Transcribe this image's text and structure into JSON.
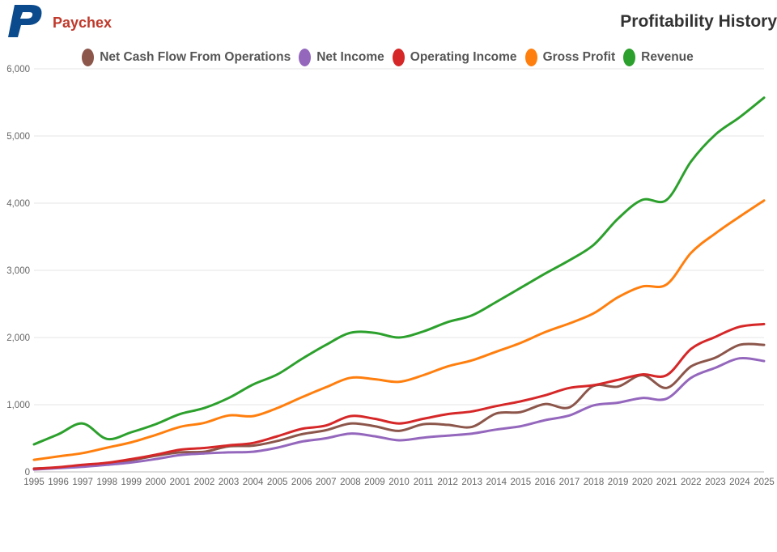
{
  "header": {
    "brand": "Paychex",
    "title": "Profitability History"
  },
  "logo": {
    "letter": "P",
    "color": "#0b4a8c"
  },
  "chart_data": {
    "type": "line",
    "title": "Profitability History",
    "xlabel": "",
    "ylabel": "",
    "ylim": [
      0,
      6000
    ],
    "yticks": [
      0,
      1000,
      2000,
      3000,
      4000,
      5000,
      6000
    ],
    "ytick_labels": [
      "0",
      "1,000",
      "2,000",
      "3,000",
      "4,000",
      "5,000",
      "6,000"
    ],
    "categories": [
      "1995",
      "1996",
      "1997",
      "1998",
      "1999",
      "2000",
      "2001",
      "2002",
      "2003",
      "2004",
      "2005",
      "2006",
      "2007",
      "2008",
      "2009",
      "2010",
      "2011",
      "2012",
      "2013",
      "2014",
      "2015",
      "2016",
      "2017",
      "2018",
      "2019",
      "2020",
      "2021",
      "2022",
      "2023",
      "2024",
      "2025"
    ],
    "grid": true,
    "legend_position": "top",
    "series": [
      {
        "name": "Net Cash Flow From Operations",
        "color": "#8c564b",
        "values": [
          50,
          65,
          100,
          130,
          175,
          240,
          290,
          300,
          380,
          390,
          460,
          560,
          620,
          720,
          680,
          610,
          710,
          700,
          670,
          870,
          890,
          1010,
          960,
          1280,
          1270,
          1440,
          1250,
          1570,
          1700,
          1890,
          1890
        ]
      },
      {
        "name": "Net Income",
        "color": "#9467bd",
        "values": [
          35,
          55,
          75,
          105,
          140,
          190,
          250,
          275,
          290,
          300,
          360,
          450,
          500,
          570,
          530,
          470,
          510,
          540,
          570,
          630,
          680,
          770,
          840,
          990,
          1030,
          1100,
          1090,
          1400,
          1550,
          1690,
          1650
        ]
      },
      {
        "name": "Operating Income",
        "color": "#d62728",
        "values": [
          45,
          70,
          105,
          135,
          190,
          255,
          330,
          355,
          395,
          430,
          530,
          640,
          690,
          830,
          790,
          720,
          790,
          860,
          900,
          980,
          1050,
          1140,
          1250,
          1290,
          1370,
          1450,
          1440,
          1830,
          2010,
          2160,
          2200
        ]
      },
      {
        "name": "Gross Profit",
        "color": "#ff7f0e",
        "values": [
          180,
          230,
          280,
          360,
          440,
          550,
          670,
          730,
          840,
          830,
          950,
          1110,
          1260,
          1400,
          1380,
          1340,
          1440,
          1570,
          1660,
          1790,
          1920,
          2080,
          2210,
          2360,
          2600,
          2760,
          2790,
          3260,
          3550,
          3800,
          4040
        ]
      },
      {
        "name": "Revenue",
        "color": "#2ca02c",
        "values": [
          410,
          560,
          720,
          490,
          590,
          710,
          860,
          950,
          1100,
          1300,
          1450,
          1680,
          1890,
          2070,
          2070,
          2000,
          2090,
          2230,
          2330,
          2530,
          2740,
          2950,
          3150,
          3380,
          3770,
          4050,
          4050,
          4620,
          5020,
          5280,
          5570
        ]
      }
    ]
  }
}
